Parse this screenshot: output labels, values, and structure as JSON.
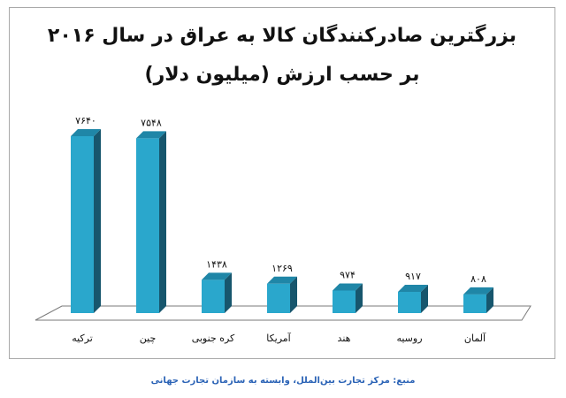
{
  "chart_data": {
    "type": "bar",
    "title": "بزرگترین صادرکنندگان کالا به عراق در سال ۲۰۱۶",
    "subtitle": "بر حسب ارزش (میلیون دلار)",
    "categories": [
      "ترکیه",
      "چین",
      "کره جنوبی",
      "آمریکا",
      "هند",
      "روسیه",
      "آلمان"
    ],
    "value_labels": [
      "۷۶۴۰",
      "۷۵۴۸",
      "۱۴۳۸",
      "۱۲۶۹",
      "۹۷۴",
      "۹۱۷",
      "۸۰۸"
    ],
    "values": [
      7640,
      7548,
      1438,
      1269,
      974,
      917,
      808
    ],
    "ylim": [
      0,
      8000
    ],
    "grid": false,
    "legend": "none",
    "colors": {
      "bar_front": "#2aa7cc",
      "bar_side": "#17566d",
      "bar_top": "#1f86a7",
      "floor": "#ffffff"
    }
  },
  "source": "منبع: مرکز تجارت بین‌الملل، وابسته به سازمان تجارت جهانی"
}
